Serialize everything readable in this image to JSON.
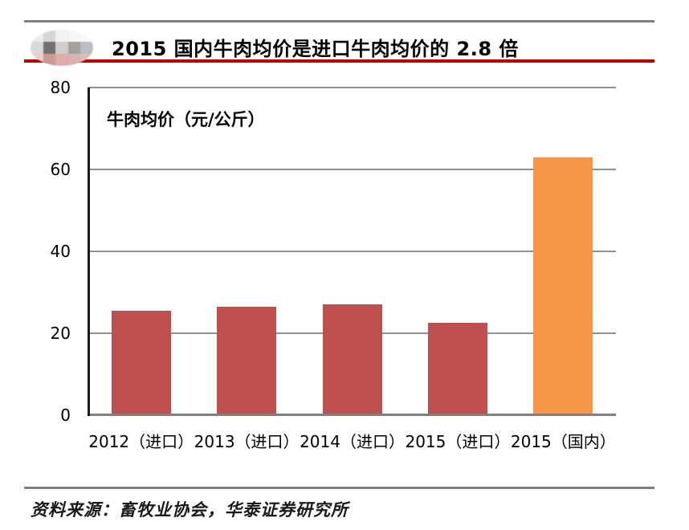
{
  "header": {
    "title": "2015 国内牛肉均价是进口牛肉均价的 2.8 倍",
    "accent_color": "#c00000",
    "rule_color": "#808080",
    "logo_blocks": [
      "#ececee",
      "#d6d6d6",
      "#f2f2f4",
      "#f6f6f8",
      "#f8f9fb",
      "#d9d9d9",
      "#717171",
      "#d0cecd",
      "#a3a09e",
      "#b6bec6",
      "#eccccb",
      "#c99a98",
      "#dfadab",
      "#d9b2b1",
      "#e2bab9"
    ]
  },
  "chart_data": {
    "type": "bar",
    "title": "牛肉均价（元/公斤）",
    "categories": [
      "2012（进口）",
      "2013（进口）",
      "2014（进口）",
      "2015（进口）",
      "2015（国内）"
    ],
    "values": [
      25.5,
      26.5,
      27,
      22.5,
      63
    ],
    "bar_colors": [
      "#c0504d",
      "#c0504d",
      "#c0504d",
      "#c0504d",
      "#f79646"
    ],
    "xlabel": "",
    "ylabel": "牛肉均价（元/公斤）",
    "ylim": [
      0,
      80
    ],
    "yticks": [
      0,
      20,
      40,
      60,
      80
    ],
    "grid": true,
    "gridline_color": "#909090",
    "legend": "none"
  },
  "footer": {
    "source": "资料来源：畜牧业协会，华泰证券研究所"
  }
}
